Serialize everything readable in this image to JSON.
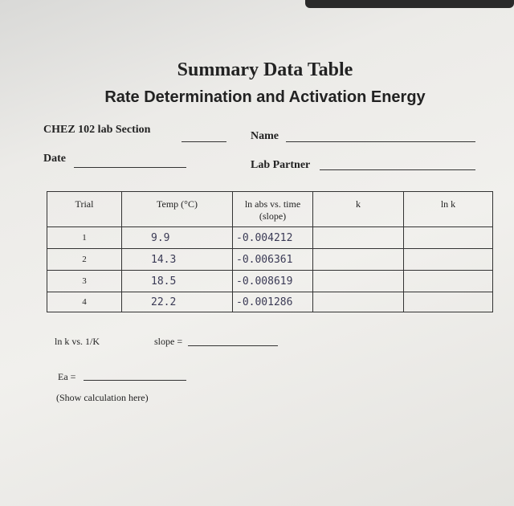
{
  "header": {
    "title": "Summary Data Table",
    "subtitle": "Rate Determination and Activation Energy"
  },
  "fields": {
    "section": "CHEZ 102 lab Section",
    "name": "Name",
    "date": "Date",
    "partner": "Lab Partner"
  },
  "table": {
    "headers": [
      "Trial",
      "Temp (°C)",
      "ln abs vs. time\n(slope)",
      "k",
      "ln k"
    ],
    "rows": [
      [
        "1",
        "9.9",
        "-0.004212"
      ],
      [
        "2",
        "14.3",
        "-0.006361"
      ],
      [
        "3",
        "18.5",
        "-0.008619"
      ],
      [
        "4",
        "22.2",
        "-0.001286"
      ]
    ]
  },
  "analysis": {
    "plot": "ln k vs. 1/K",
    "slope": "slope =",
    "ea": "Ea =",
    "note": "(Show calculation here)"
  }
}
